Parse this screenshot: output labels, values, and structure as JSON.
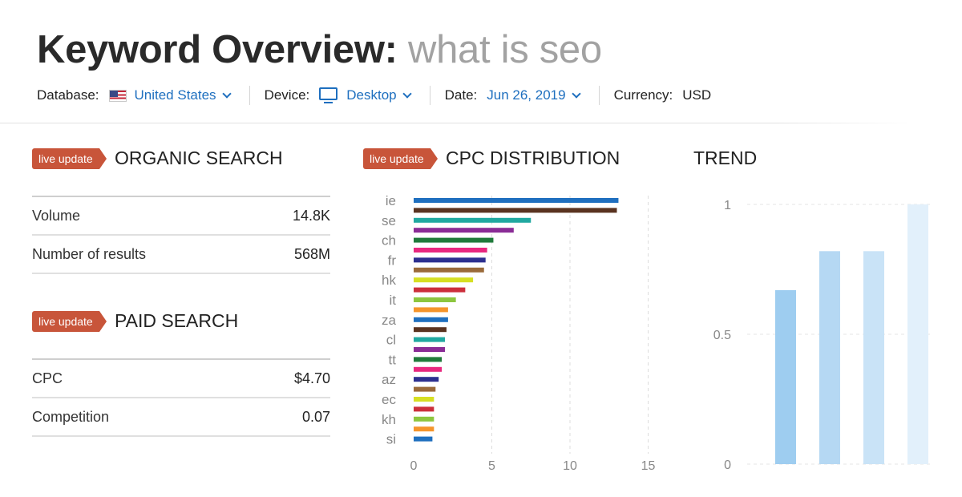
{
  "header": {
    "title": "Keyword Overview:",
    "query": "what is seo"
  },
  "filters": {
    "database_label": "Database:",
    "database_value": "United States",
    "device_label": "Device:",
    "device_value": "Desktop",
    "date_label": "Date:",
    "date_value": "Jun 26, 2019",
    "currency_label": "Currency:",
    "currency_value": "USD"
  },
  "organic": {
    "badge": "live update",
    "title": "ORGANIC SEARCH",
    "rows": [
      {
        "label": "Volume",
        "value": "14.8K"
      },
      {
        "label": "Number of results",
        "value": "568M"
      }
    ]
  },
  "paid": {
    "badge": "live update",
    "title": "PAID SEARCH",
    "rows": [
      {
        "label": "CPC",
        "value": "$4.70"
      },
      {
        "label": "Competition",
        "value": "0.07"
      }
    ]
  },
  "cpc": {
    "badge": "live update",
    "title": "CPC DISTRIBUTION"
  },
  "trend": {
    "title": "TREND"
  },
  "chart_data": [
    {
      "type": "bar",
      "orientation": "horizontal",
      "title": "CPC DISTRIBUTION",
      "category_labels_shown": [
        "ie",
        "se",
        "ch",
        "fr",
        "hk",
        "it",
        "za",
        "cl",
        "tt",
        "az",
        "ec",
        "kh",
        "si"
      ],
      "values": [
        13.1,
        13.0,
        7.5,
        6.4,
        5.1,
        4.7,
        4.6,
        4.5,
        3.8,
        3.3,
        2.7,
        2.2,
        2.2,
        2.1,
        2.0,
        2.0,
        1.8,
        1.8,
        1.6,
        1.4,
        1.3,
        1.3,
        1.3,
        1.3,
        1.2
      ],
      "colors": [
        "#1f6fbf",
        "#5a3320",
        "#21a8a0",
        "#8a2c96",
        "#1f7a3a",
        "#e8287f",
        "#2c2f8f",
        "#9a6a3a",
        "#d6df22",
        "#cc2f3b",
        "#8dc63f",
        "#f5952b",
        "#1f6fbf",
        "#5a3320",
        "#21a8a0",
        "#8a2c96",
        "#1f7a3a",
        "#e8287f",
        "#2c2f8f",
        "#9a6a3a",
        "#d6df22",
        "#cc2f3b",
        "#8dc63f",
        "#f5952b",
        "#1f6fbf"
      ],
      "xticks": [
        "0",
        "5",
        "10",
        "15"
      ],
      "xlim": [
        0,
        15
      ],
      "grid": true
    },
    {
      "type": "bar",
      "title": "TREND",
      "values": [
        0.67,
        0.82,
        0.82,
        1.0
      ],
      "colors": [
        "#9ecdf0",
        "#b5d8f3",
        "#c9e3f7",
        "#e2f0fb"
      ],
      "yticks": [
        "1",
        "0.5",
        "0"
      ],
      "ylim": [
        0,
        1
      ],
      "grid": true
    }
  ]
}
